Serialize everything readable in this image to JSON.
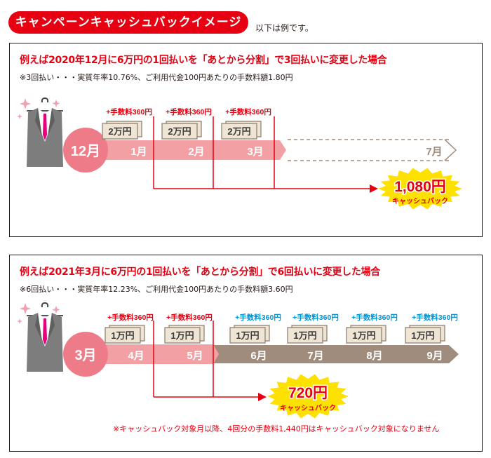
{
  "header": {
    "badge_text": "キャンペーンキャッシュバックイメージ",
    "note": "以下は例です。"
  },
  "colors": {
    "red": "#e60012",
    "pink": "#f2a0a4",
    "pink_light": "#f7c6c8",
    "brown": "#a08c7c",
    "blue": "#0094d6",
    "yellow": "#ffe100",
    "cash": "#efe5d5"
  },
  "example1": {
    "title": "例えば2020年12月に6万円の1回払いを「あとから分割」で3回払いに変更した場合",
    "subtitle": "※3回払い・・・実質年率10.76%、ご利用代金100円あたりの手数料額1.80円",
    "start_month": "12月",
    "months": [
      {
        "label": "1月",
        "fee": "+手数料360円",
        "cash": "2万円"
      },
      {
        "label": "2月",
        "fee": "+手数料360円",
        "cash": "2万円"
      },
      {
        "label": "3月",
        "fee": "+手数料360円",
        "cash": "2万円"
      }
    ],
    "end_month": "7月",
    "cashback_amount": "1,080円",
    "cashback_label": "キャッシュバック"
  },
  "example2": {
    "title": "例えば2021年3月に6万円の1回払いを「あとから分割」で6回払いに変更した場合",
    "subtitle": "※6回払い・・・実質年率12.23%、ご利用代金100円あたりの手数料額3.60円",
    "start_month": "3月",
    "months": [
      {
        "label": "4月",
        "fee": "+手数料360円",
        "cash": "1万円"
      },
      {
        "label": "5月",
        "fee": "+手数料360円",
        "cash": "1万円"
      },
      {
        "label": "6月",
        "fee": "+手数料360円",
        "cash": "1万円"
      },
      {
        "label": "7月",
        "fee": "+手数料360円",
        "cash": "1万円"
      },
      {
        "label": "8月",
        "fee": "+手数料360円",
        "cash": "1万円"
      },
      {
        "label": "9月",
        "fee": "+手数料360円",
        "cash": "1万円"
      }
    ],
    "cashback_amount": "720円",
    "cashback_label": "キャッシュバック",
    "footnote": "※キャッシュバック対象月以降、4回分の手数料1,440円はキャッシュバック対象になりません"
  }
}
